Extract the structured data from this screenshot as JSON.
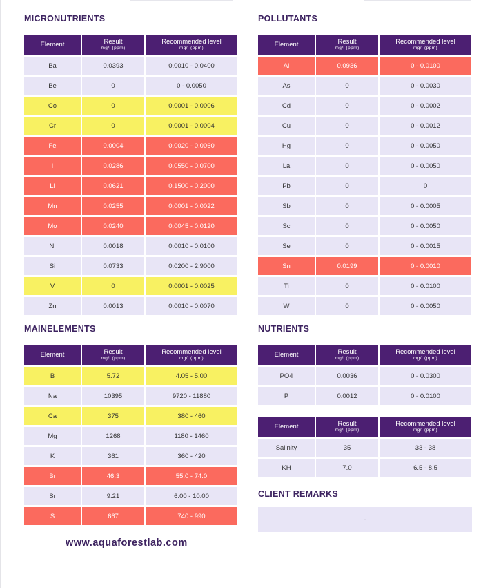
{
  "headers": {
    "element": "Element",
    "result": "Result",
    "result_unit": "mg/l (ppm)",
    "recommended": "Recommended level",
    "recommended_unit": "mg/l (ppm)"
  },
  "micronutrients": {
    "title": "MICRONUTRIENTS",
    "rows": [
      {
        "element": "Ba",
        "result": "0.0393",
        "range": "0.0010 - 0.0400",
        "status": "normal"
      },
      {
        "element": "Be",
        "result": "0",
        "range": "0 - 0.0050",
        "status": "normal"
      },
      {
        "element": "Co",
        "result": "0",
        "range": "0.0001 - 0.0006",
        "status": "yellow"
      },
      {
        "element": "Cr",
        "result": "0",
        "range": "0.0001 - 0.0004",
        "status": "yellow"
      },
      {
        "element": "Fe",
        "result": "0.0004",
        "range": "0.0020 - 0.0060",
        "status": "red"
      },
      {
        "element": "I",
        "result": "0.0286",
        "range": "0.0550 - 0.0700",
        "status": "red"
      },
      {
        "element": "Li",
        "result": "0.0621",
        "range": "0.1500 - 0.2000",
        "status": "red"
      },
      {
        "element": "Mn",
        "result": "0.0255",
        "range": "0.0001 - 0.0022",
        "status": "red"
      },
      {
        "element": "Mo",
        "result": "0.0240",
        "range": "0.0045 - 0.0120",
        "status": "red"
      },
      {
        "element": "Ni",
        "result": "0.0018",
        "range": "0.0010 - 0.0100",
        "status": "normal"
      },
      {
        "element": "Si",
        "result": "0.0733",
        "range": "0.0200 - 2.9000",
        "status": "normal"
      },
      {
        "element": "V",
        "result": "0",
        "range": "0.0001 - 0.0025",
        "status": "yellow"
      },
      {
        "element": "Zn",
        "result": "0.0013",
        "range": "0.0010 - 0.0070",
        "status": "normal"
      }
    ]
  },
  "pollutants": {
    "title": "POLLUTANTS",
    "rows": [
      {
        "element": "Al",
        "result": "0.0936",
        "range": "0 - 0.0100",
        "status": "red"
      },
      {
        "element": "As",
        "result": "0",
        "range": "0 - 0.0030",
        "status": "normal"
      },
      {
        "element": "Cd",
        "result": "0",
        "range": "0 - 0.0002",
        "status": "normal"
      },
      {
        "element": "Cu",
        "result": "0",
        "range": "0 - 0.0012",
        "status": "normal"
      },
      {
        "element": "Hg",
        "result": "0",
        "range": "0 - 0.0050",
        "status": "normal"
      },
      {
        "element": "La",
        "result": "0",
        "range": "0 - 0.0050",
        "status": "normal"
      },
      {
        "element": "Pb",
        "result": "0",
        "range": "0",
        "status": "normal"
      },
      {
        "element": "Sb",
        "result": "0",
        "range": "0 - 0.0005",
        "status": "normal"
      },
      {
        "element": "Sc",
        "result": "0",
        "range": "0 - 0.0050",
        "status": "normal"
      },
      {
        "element": "Se",
        "result": "0",
        "range": "0 - 0.0015",
        "status": "normal"
      },
      {
        "element": "Sn",
        "result": "0.0199",
        "range": "0 - 0.0010",
        "status": "red"
      },
      {
        "element": "Ti",
        "result": "0",
        "range": "0 - 0.0100",
        "status": "normal"
      },
      {
        "element": "W",
        "result": "0",
        "range": "0 - 0.0050",
        "status": "normal"
      }
    ]
  },
  "mainelements": {
    "title": "MAINELEMENTS",
    "rows": [
      {
        "element": "B",
        "result": "5.72",
        "range": "4.05 - 5.00",
        "status": "yellow"
      },
      {
        "element": "Na",
        "result": "10395",
        "range": "9720 - 11880",
        "status": "normal"
      },
      {
        "element": "Ca",
        "result": "375",
        "range": "380 - 460",
        "status": "yellow"
      },
      {
        "element": "Mg",
        "result": "1268",
        "range": "1180 - 1460",
        "status": "normal"
      },
      {
        "element": "K",
        "result": "361",
        "range": "360 - 420",
        "status": "normal"
      },
      {
        "element": "Br",
        "result": "46.3",
        "range": "55.0 - 74.0",
        "status": "red"
      },
      {
        "element": "Sr",
        "result": "9.21",
        "range": "6.00 - 10.00",
        "status": "normal"
      },
      {
        "element": "S",
        "result": "667",
        "range": "740 - 990",
        "status": "red"
      }
    ]
  },
  "nutrients": {
    "title": "NUTRIENTS",
    "rows": [
      {
        "element": "PO4",
        "result": "0.0036",
        "range": "0 - 0.0300",
        "status": "normal"
      },
      {
        "element": "P",
        "result": "0.0012",
        "range": "0 - 0.0100",
        "status": "normal"
      }
    ]
  },
  "other": {
    "rows": [
      {
        "element": "Salinity",
        "result": "35",
        "range": "33 - 38",
        "status": "normal"
      },
      {
        "element": "KH",
        "result": "7.0",
        "range": "6.5 - 8.5",
        "status": "normal"
      }
    ]
  },
  "client_remarks": {
    "title": "CLIENT REMARKS",
    "text": "-"
  },
  "footer": {
    "website": "www.aquaforestlab.com"
  },
  "colors": {
    "header": "#4c1f72",
    "normal": "#e8e5f6",
    "yellow": "#f8f162",
    "red": "#fb6a5e"
  }
}
